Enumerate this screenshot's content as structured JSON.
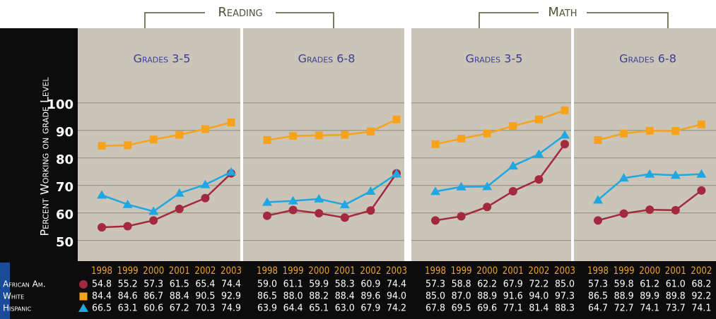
{
  "headings": [
    "Reading",
    "Math"
  ],
  "chart_data": [
    {
      "type": "line",
      "title": "Grades 3-5",
      "ylabel": "Percent Working on grade Level",
      "categories": [
        "1998",
        "1999",
        "2000",
        "2001",
        "2002",
        "2003"
      ],
      "ylim": [
        42,
        122
      ],
      "yticks": [
        50,
        60,
        70,
        80,
        90,
        100
      ],
      "grid": true,
      "series": [
        {
          "name": "African Am.",
          "color": "#a3293f",
          "marker": "circle",
          "values": [
            54.8,
            55.2,
            57.3,
            61.5,
            65.4,
            74.4
          ],
          "value_labels": [
            "54.8",
            "55.2",
            "57.3",
            "61.5",
            "65.4",
            "74.4"
          ]
        },
        {
          "name": "White",
          "color": "#f7a21b",
          "marker": "square",
          "values": [
            84.4,
            84.6,
            86.7,
            88.4,
            90.5,
            92.9
          ],
          "value_labels": [
            "84.4",
            "84.6",
            "86.7",
            "88.4",
            "90.5",
            "92.9"
          ]
        },
        {
          "name": "Hispanic",
          "color": "#1ea7e1",
          "marker": "triangle",
          "values": [
            66.5,
            63.1,
            60.6,
            67.2,
            70.3,
            74.9
          ],
          "value_labels": [
            "66.5",
            "63.1",
            "60.6",
            "67.2",
            "70.3",
            "74.9"
          ]
        }
      ]
    },
    {
      "type": "line",
      "title": "Grades 6-8",
      "categories": [
        "1998",
        "1999",
        "2000",
        "2001",
        "2002",
        "2003"
      ],
      "ylim": [
        42,
        122
      ],
      "yticks": [
        50,
        60,
        70,
        80,
        90,
        100
      ],
      "grid": true,
      "series": [
        {
          "name": "African Am.",
          "color": "#a3293f",
          "marker": "circle",
          "values": [
            59.0,
            61.1,
            59.9,
            58.3,
            60.9,
            74.4
          ],
          "value_labels": [
            "59.0",
            "61.1",
            "59.9",
            "58.3",
            "60.9",
            "74.4"
          ]
        },
        {
          "name": "White",
          "color": "#f7a21b",
          "marker": "square",
          "values": [
            86.5,
            88.0,
            88.2,
            88.4,
            89.6,
            94.0
          ],
          "value_labels": [
            "86.5",
            "88.0",
            "88.2",
            "88.4",
            "89.6",
            "94.0"
          ]
        },
        {
          "name": "Hispanic",
          "color": "#1ea7e1",
          "marker": "triangle",
          "values": [
            63.9,
            64.4,
            65.1,
            63.0,
            67.9,
            74.2
          ],
          "value_labels": [
            "63.9",
            "64.4",
            "65.1",
            "63.0",
            "67.9",
            "74.2"
          ]
        }
      ]
    },
    {
      "type": "line",
      "title": "Grades 3-5",
      "categories": [
        "1998",
        "1999",
        "2000",
        "2001",
        "2002",
        "2003"
      ],
      "ylim": [
        42,
        122
      ],
      "yticks": [
        50,
        60,
        70,
        80,
        90,
        100
      ],
      "grid": true,
      "series": [
        {
          "name": "African Am.",
          "color": "#a3293f",
          "marker": "circle",
          "values": [
            57.3,
            58.8,
            62.2,
            67.9,
            72.2,
            85.0
          ],
          "value_labels": [
            "57.3",
            "58.8",
            "62.2",
            "67.9",
            "72.2",
            "85.0"
          ]
        },
        {
          "name": "White",
          "color": "#f7a21b",
          "marker": "square",
          "values": [
            85.0,
            87.0,
            88.9,
            91.6,
            94.0,
            97.3
          ],
          "value_labels": [
            "85.0",
            "87.0",
            "88.9",
            "91.6",
            "94.0",
            "97.3"
          ]
        },
        {
          "name": "Hispanic",
          "color": "#1ea7e1",
          "marker": "triangle",
          "values": [
            67.8,
            69.5,
            69.6,
            77.1,
            81.4,
            88.3
          ],
          "value_labels": [
            "67.8",
            "69.5",
            "69.6",
            "77.1",
            "81.4",
            "88.3"
          ]
        }
      ]
    },
    {
      "type": "line",
      "title": "Grades 6-8",
      "categories": [
        "1998",
        "1999",
        "2000",
        "2001",
        "2002"
      ],
      "ylim": [
        42,
        122
      ],
      "yticks": [
        50,
        60,
        70,
        80,
        90,
        100
      ],
      "grid": true,
      "series": [
        {
          "name": "African Am.",
          "color": "#a3293f",
          "marker": "circle",
          "values": [
            57.3,
            59.8,
            61.2,
            61.0,
            68.2
          ],
          "value_labels": [
            "57.3",
            "59.8",
            "61.2",
            "61.0",
            "68.2"
          ]
        },
        {
          "name": "White",
          "color": "#f7a21b",
          "marker": "square",
          "values": [
            86.5,
            88.9,
            89.9,
            89.8,
            92.2
          ],
          "value_labels": [
            "86.5",
            "88.9",
            "89.9",
            "89.8",
            "92.2"
          ]
        },
        {
          "name": "Hispanic",
          "color": "#1ea7e1",
          "marker": "triangle",
          "values": [
            64.7,
            72.7,
            74.1,
            73.7,
            74.1
          ],
          "value_labels": [
            "64.7",
            "72.7",
            "74.1",
            "73.7",
            "74.1"
          ]
        }
      ]
    }
  ]
}
